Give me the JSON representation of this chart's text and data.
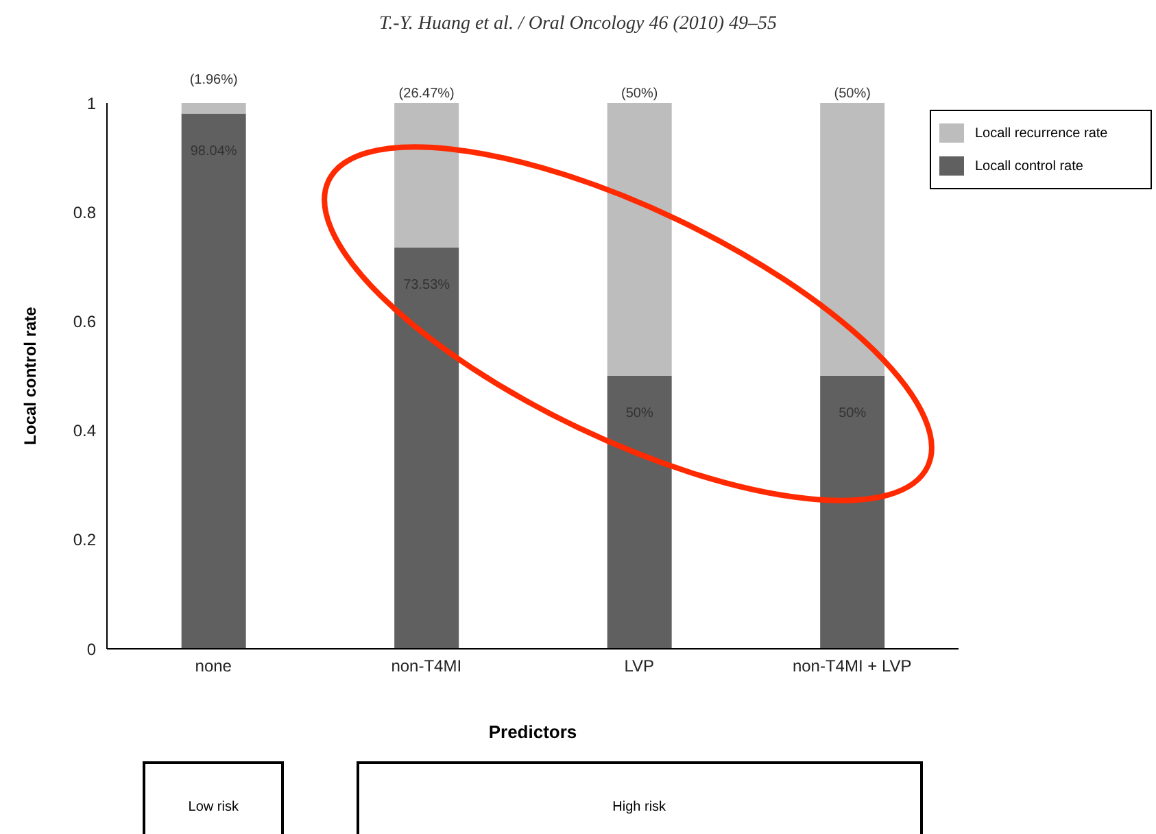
{
  "chart_data": {
    "type": "bar",
    "title": "T.-Y. Huang et al. / Oral Oncology 46 (2010) 49–55",
    "xlabel": "Predictors",
    "ylabel": "Local control rate",
    "categories": [
      "none",
      "non-T4MI",
      "LVP",
      "non-T4MI + LVP"
    ],
    "stacked": true,
    "series": [
      {
        "name": "Locall control rate",
        "color": "#606060",
        "values": [
          0.9804,
          0.7353,
          0.5,
          0.5
        ],
        "value_labels": [
          "98.04%",
          "73.53%",
          "50%",
          "50%"
        ]
      },
      {
        "name": "Locall recurrence rate",
        "color": "#bdbdbd",
        "values": [
          0.0196,
          0.2647,
          0.5,
          0.5
        ],
        "value_labels": [
          "(1.96%)",
          "(26.47%)",
          "(50%)",
          "(50%)"
        ]
      }
    ],
    "ylim": [
      0,
      1
    ],
    "yticks": [
      0,
      0.2,
      0.4,
      0.6,
      0.8,
      1
    ],
    "legend": "right",
    "annotations": [
      "Low risk",
      "High risk"
    ]
  }
}
